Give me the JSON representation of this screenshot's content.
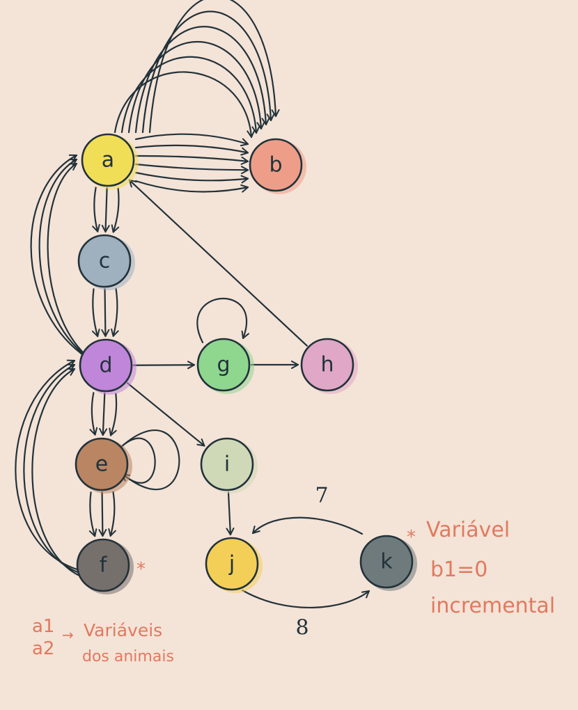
{
  "diagram": {
    "nodes": [
      {
        "id": "a",
        "label": "a",
        "color": "#f1de57"
      },
      {
        "id": "b",
        "label": "b",
        "color": "#ee9e88"
      },
      {
        "id": "c",
        "label": "c",
        "color": "#9fb0bf"
      },
      {
        "id": "d",
        "label": "d",
        "color": "#bf86d9"
      },
      {
        "id": "e",
        "label": "e",
        "color": "#b98563"
      },
      {
        "id": "f",
        "label": "f",
        "color": "#76706d"
      },
      {
        "id": "g",
        "label": "g",
        "color": "#8fd68f"
      },
      {
        "id": "h",
        "label": "h",
        "color": "#e0a7c7"
      },
      {
        "id": "i",
        "label": "i",
        "color": "#cfd9b7"
      },
      {
        "id": "j",
        "label": "j",
        "color": "#f3cf58"
      },
      {
        "id": "k",
        "label": "k",
        "color": "#6e7a7c"
      }
    ],
    "edges": [
      {
        "from": "a",
        "to": "b",
        "count": 6
      },
      {
        "from": "b",
        "to": "a",
        "count": 6
      },
      {
        "from": "a",
        "to": "c",
        "count": 3
      },
      {
        "from": "c",
        "to": "d",
        "count": 3
      },
      {
        "from": "d",
        "to": "a",
        "count": 3
      },
      {
        "from": "h",
        "to": "a",
        "count": 1
      },
      {
        "from": "d",
        "to": "g",
        "count": 1
      },
      {
        "from": "g",
        "to": "g",
        "count": 1
      },
      {
        "from": "g",
        "to": "h",
        "count": 1
      },
      {
        "from": "d",
        "to": "e",
        "count": 3
      },
      {
        "from": "e",
        "to": "e",
        "count": 2
      },
      {
        "from": "e",
        "to": "f",
        "count": 3
      },
      {
        "from": "f",
        "to": "d",
        "count": 3
      },
      {
        "from": "d",
        "to": "i",
        "count": 1
      },
      {
        "from": "i",
        "to": "j",
        "count": 1
      },
      {
        "from": "k",
        "to": "j",
        "count": 1,
        "weight": "7"
      },
      {
        "from": "j",
        "to": "k",
        "count": 1,
        "weight": "8"
      }
    ]
  },
  "annotations": {
    "star": "*",
    "k_note_line1": "Variável",
    "k_note_line2": "b1=0",
    "k_note_line3": "incremental",
    "vars_line1": "a1",
    "vars_line2": "a2",
    "vars_arrow": "→",
    "vars_text_line1": "Variáveis",
    "vars_text_line2": "dos animais",
    "accent_color": "#e07a5f",
    "ink_color": "#22323a"
  }
}
